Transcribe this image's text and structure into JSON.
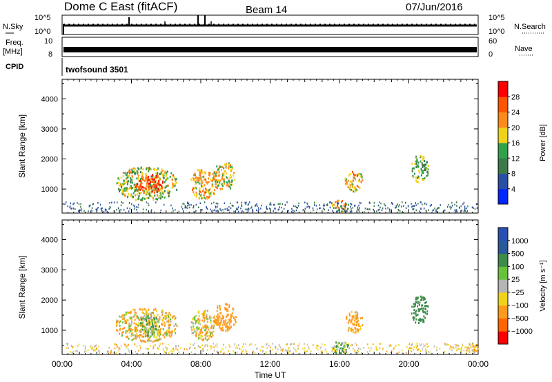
{
  "header": {
    "title": "Dome C East (fitACF)",
    "beam": "Beam 14",
    "date": "07/Jun/2016"
  },
  "noise_panel": {
    "left_label": "N.Sky",
    "left_ticks": [
      "10^5",
      "10^0"
    ],
    "right_ticks": [
      "10^5",
      "10^0"
    ],
    "right_label": "N.Search"
  },
  "freq_panel": {
    "left_label": "Freq.",
    "left_unit": "[MHz]",
    "left_ticks": [
      "10",
      "8"
    ],
    "right_ticks": [
      "60",
      "0"
    ],
    "right_label": "Nave"
  },
  "cpid": {
    "label": "CPID",
    "program": "twofsound 3501"
  },
  "colors": {
    "power": [
      "#0026ff",
      "#2a4fa6",
      "#3d7a4a",
      "#33a04a",
      "#f0d21a",
      "#ff8a1a",
      "#ff5500",
      "#ff0000"
    ],
    "velocity": [
      "#ff0000",
      "#ff6600",
      "#ff9a1a",
      "#f0d21a",
      "#b5b5b5",
      "#66c23a",
      "#3d8a4a",
      "#2a5a9a",
      "#2a4fb0"
    ]
  },
  "chart_data": [
    {
      "type": "heatmap",
      "name_hint": "power",
      "xlabel": "",
      "ylabel": "Slant Range [km]",
      "xlim": [
        0,
        24
      ],
      "ylim": [
        200,
        4650
      ],
      "y_ticks": [
        "1000",
        "2000",
        "3000",
        "4000"
      ],
      "x_ticks": [
        "00:00",
        "04:00",
        "08:00",
        "12:00",
        "16:00",
        "20:00",
        "00:00"
      ],
      "colorbar": {
        "label": "Power [dB]",
        "ticks": [
          "4",
          "8",
          "12",
          "16",
          "20",
          "24",
          "28"
        ],
        "range": [
          0,
          32
        ]
      },
      "patches": [
        {
          "t0": 3.1,
          "t1": 6.6,
          "r0": 650,
          "r1": 1750,
          "value": 16
        },
        {
          "t0": 4.2,
          "t1": 5.8,
          "r0": 900,
          "r1": 1500,
          "value": 26
        },
        {
          "t0": 7.4,
          "t1": 8.9,
          "r0": 700,
          "r1": 1700,
          "value": 20
        },
        {
          "t0": 8.7,
          "t1": 10.0,
          "r0": 1000,
          "r1": 1900,
          "value": 18
        },
        {
          "t0": 16.3,
          "t1": 17.3,
          "r0": 950,
          "r1": 1650,
          "value": 20
        },
        {
          "t0": 20.1,
          "t1": 21.1,
          "r0": 1250,
          "r1": 2150,
          "value": 14
        },
        {
          "t0": 15.5,
          "t1": 16.5,
          "r0": 250,
          "r1": 650,
          "value": 20
        }
      ]
    },
    {
      "type": "heatmap",
      "name_hint": "velocity",
      "xlabel": "Time UT",
      "ylabel": "Slant Range [km]",
      "xlim": [
        0,
        24
      ],
      "ylim": [
        200,
        4650
      ],
      "y_ticks": [
        "1000",
        "2000",
        "3000",
        "4000"
      ],
      "x_ticks": [
        "00:00",
        "04:00",
        "08:00",
        "12:00",
        "16:00",
        "20:00",
        "00:00"
      ],
      "colorbar": {
        "label": "Velocity [m s⁻¹]",
        "ticks": [
          "1000",
          "500",
          "100",
          "25",
          "−25",
          "−100",
          "−500",
          "−1000"
        ]
      },
      "patches": [
        {
          "t0": 3.1,
          "t1": 6.6,
          "r0": 650,
          "r1": 1750,
          "value": -100
        },
        {
          "t0": 4.4,
          "t1": 5.6,
          "r0": 800,
          "r1": 1500,
          "value": 100
        },
        {
          "t0": 7.4,
          "t1": 8.9,
          "r0": 700,
          "r1": 1700,
          "value": -100
        },
        {
          "t0": 8.7,
          "t1": 10.0,
          "r0": 1000,
          "r1": 1900,
          "value": -300
        },
        {
          "t0": 16.3,
          "t1": 17.3,
          "r0": 950,
          "r1": 1650,
          "value": -200
        },
        {
          "t0": 20.1,
          "t1": 21.1,
          "r0": 1250,
          "r1": 2150,
          "value": 300
        },
        {
          "t0": 15.5,
          "t1": 16.5,
          "r0": 250,
          "r1": 650,
          "value": 100
        },
        {
          "t0": 23.3,
          "t1": 24.0,
          "r0": 250,
          "r1": 600,
          "value": -100
        }
      ]
    }
  ]
}
